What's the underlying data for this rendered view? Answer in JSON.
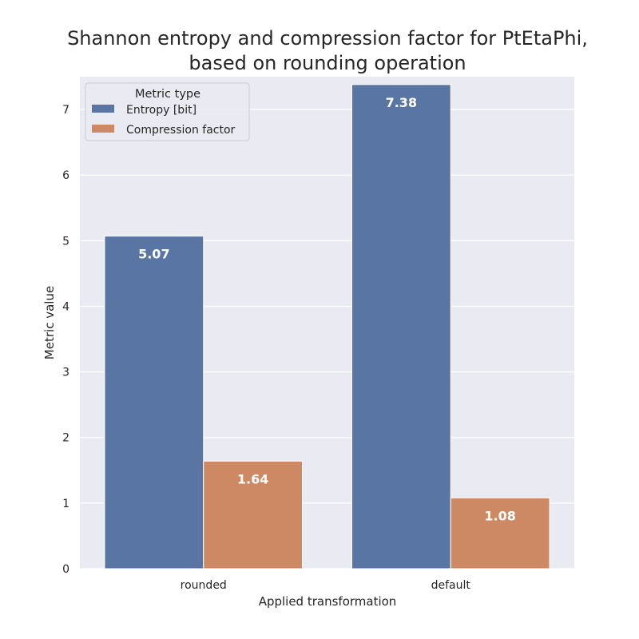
{
  "chart_data": {
    "type": "bar",
    "title_lines": [
      "Shannon entropy and compression factor for PtEtaPhi,",
      "based on rounding operation"
    ],
    "xlabel": "Applied transformation",
    "ylabel": "Metric value",
    "categories": [
      "rounded",
      "default"
    ],
    "series": [
      {
        "name": "Entropy [bit]",
        "values": [
          5.07,
          7.38
        ],
        "labels": [
          "5.07",
          "7.38"
        ],
        "color": "#5975a4"
      },
      {
        "name": "Compression factor",
        "values": [
          1.64,
          1.08
        ],
        "labels": [
          "1.64",
          "1.08"
        ],
        "color": "#cc8963"
      }
    ],
    "ylim": [
      0,
      7.5
    ],
    "yticks": [
      0,
      1,
      2,
      3,
      4,
      5,
      6,
      7
    ],
    "grid": true,
    "legend": {
      "title": "Metric type",
      "placement": "top-left"
    },
    "colors": {
      "background": "#eaeaf2",
      "grid": "#ffffff"
    }
  }
}
